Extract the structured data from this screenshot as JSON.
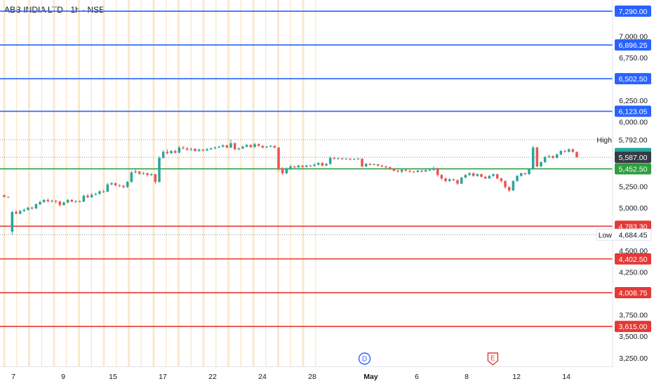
{
  "header": {
    "title": "ABB INDIA LTD · 1h · NSE"
  },
  "colors": {
    "resistance": "#2962ff",
    "support_top": "#2e9e3e",
    "support": "#e53935",
    "up": "#26a69a",
    "down": "#ef5350",
    "current": "#363a45",
    "vgrid": "#fbe3c2"
  },
  "chart_data": {
    "type": "candlestick",
    "ylim": [
      3150,
      7420
    ],
    "y_ticks": [
      {
        "value": 7000,
        "label": "7,000.00"
      },
      {
        "value": 6750,
        "label": "6,750.00"
      },
      {
        "value": 6250,
        "label": "6,250.00"
      },
      {
        "value": 6000,
        "label": "6,000.00"
      },
      {
        "value": 5250,
        "label": "5,250.00"
      },
      {
        "value": 5000,
        "label": "5,000.00"
      },
      {
        "value": 4500,
        "label": "4,500.00"
      },
      {
        "value": 4250,
        "label": "4,250.00"
      },
      {
        "value": 3750,
        "label": "3,750.00"
      },
      {
        "value": 3500,
        "label": "3,500.00"
      },
      {
        "value": 3250,
        "label": "3,250.00"
      }
    ],
    "x_ticks": [
      {
        "label": "7",
        "pos": 0.0
      },
      {
        "label": "9",
        "pos": 2.0
      },
      {
        "label": "15",
        "pos": 4.0
      },
      {
        "label": "17",
        "pos": 6.0
      },
      {
        "label": "22",
        "pos": 8.0
      },
      {
        "label": "24",
        "pos": 10.0
      },
      {
        "label": "28",
        "pos": 12.0
      },
      {
        "label": "May",
        "pos": 14.35
      },
      {
        "label": "6",
        "pos": 16.2
      },
      {
        "label": "8",
        "pos": 18.2
      },
      {
        "label": "12",
        "pos": 20.2
      },
      {
        "label": "14",
        "pos": 22.2
      }
    ],
    "levels": [
      {
        "value": 7290.0,
        "label": "7,290.00",
        "kind": "resistance"
      },
      {
        "value": 6896.25,
        "label": "6,896.25",
        "kind": "resistance"
      },
      {
        "value": 6502.5,
        "label": "6,502.50",
        "kind": "resistance"
      },
      {
        "value": 6123.05,
        "label": "6,123.05",
        "kind": "resistance"
      },
      {
        "value": 5452.5,
        "label": "5,452.50",
        "kind": "support_top"
      },
      {
        "value": 4783.3,
        "label": "4,783.30",
        "kind": "support"
      },
      {
        "value": 4402.5,
        "label": "4,402.50",
        "kind": "support"
      },
      {
        "value": 4008.75,
        "label": "4,008.75",
        "kind": "support"
      },
      {
        "value": 3615.0,
        "label": "3,615.00",
        "kind": "support"
      }
    ],
    "high": {
      "label": "High",
      "value": 5792.0,
      "value_label": "5,792.00"
    },
    "low": {
      "label": "Low",
      "value": 4684.45,
      "value_label": "4,684.45"
    },
    "prev_close": {
      "value": 5630.5,
      "label": "5,630.50"
    },
    "last_price": {
      "value": 5587.0,
      "label": "5,587.00"
    },
    "markers": [
      {
        "label": "D",
        "pos": 14.1,
        "shape": "circle"
      },
      {
        "label": "E",
        "pos": 19.25,
        "shape": "shield"
      }
    ],
    "candles": [
      [
        5146,
        5125,
        5150,
        5120
      ],
      [
        5125,
        5120,
        5130,
        5115
      ],
      [
        4720,
        4950,
        4960,
        4684
      ],
      [
        4950,
        4930,
        4970,
        4920
      ],
      [
        4930,
        4960,
        4975,
        4920
      ],
      [
        4960,
        4975,
        4990,
        4950
      ],
      [
        4975,
        5000,
        5010,
        4965
      ],
      [
        5000,
        4990,
        5015,
        4975
      ],
      [
        4990,
        5040,
        5050,
        4985
      ],
      [
        5040,
        5065,
        5080,
        5030
      ],
      [
        5065,
        5090,
        5100,
        5055
      ],
      [
        5090,
        5075,
        5110,
        5060
      ],
      [
        5075,
        5080,
        5095,
        5060
      ],
      [
        5080,
        5070,
        5090,
        5050
      ],
      [
        5070,
        5030,
        5080,
        5010
      ],
      [
        5030,
        5060,
        5070,
        5020
      ],
      [
        5060,
        5090,
        5100,
        5050
      ],
      [
        5090,
        5070,
        5100,
        5060
      ],
      [
        5070,
        5075,
        5090,
        5055
      ],
      [
        5075,
        5070,
        5085,
        5060
      ],
      [
        5070,
        5140,
        5150,
        5065
      ],
      [
        5140,
        5120,
        5160,
        5110
      ],
      [
        5120,
        5150,
        5170,
        5115
      ],
      [
        5150,
        5160,
        5175,
        5140
      ],
      [
        5160,
        5190,
        5200,
        5150
      ],
      [
        5190,
        5185,
        5210,
        5170
      ],
      [
        5185,
        5270,
        5290,
        5180
      ],
      [
        5270,
        5285,
        5300,
        5260
      ],
      [
        5285,
        5260,
        5295,
        5250
      ],
      [
        5260,
        5255,
        5275,
        5240
      ],
      [
        5255,
        5240,
        5265,
        5225
      ],
      [
        5240,
        5300,
        5310,
        5230
      ],
      [
        5300,
        5410,
        5430,
        5290
      ],
      [
        5410,
        5420,
        5450,
        5400
      ],
      [
        5420,
        5395,
        5430,
        5380
      ],
      [
        5395,
        5400,
        5420,
        5385
      ],
      [
        5400,
        5380,
        5410,
        5360
      ],
      [
        5380,
        5390,
        5400,
        5370
      ],
      [
        5390,
        5300,
        5395,
        5280
      ],
      [
        5300,
        5580,
        5600,
        5290
      ],
      [
        5580,
        5650,
        5670,
        5570
      ],
      [
        5650,
        5635,
        5680,
        5620
      ],
      [
        5635,
        5660,
        5670,
        5625
      ],
      [
        5660,
        5640,
        5675,
        5630
      ],
      [
        5640,
        5700,
        5720,
        5635
      ],
      [
        5700,
        5690,
        5720,
        5680
      ],
      [
        5690,
        5675,
        5705,
        5665
      ],
      [
        5675,
        5685,
        5700,
        5660
      ],
      [
        5685,
        5660,
        5695,
        5650
      ],
      [
        5660,
        5675,
        5690,
        5650
      ],
      [
        5675,
        5665,
        5685,
        5655
      ],
      [
        5665,
        5680,
        5695,
        5660
      ],
      [
        5680,
        5690,
        5700,
        5670
      ],
      [
        5690,
        5700,
        5715,
        5680
      ],
      [
        5700,
        5710,
        5720,
        5695
      ],
      [
        5710,
        5725,
        5740,
        5700
      ],
      [
        5725,
        5700,
        5735,
        5690
      ],
      [
        5700,
        5750,
        5792,
        5695
      ],
      [
        5750,
        5680,
        5760,
        5670
      ],
      [
        5680,
        5690,
        5700,
        5665
      ],
      [
        5690,
        5710,
        5725,
        5680
      ],
      [
        5710,
        5730,
        5745,
        5700
      ],
      [
        5730,
        5705,
        5740,
        5695
      ],
      [
        5705,
        5740,
        5755,
        5700
      ],
      [
        5740,
        5720,
        5750,
        5710
      ],
      [
        5720,
        5700,
        5730,
        5690
      ],
      [
        5700,
        5710,
        5720,
        5695
      ],
      [
        5710,
        5720,
        5730,
        5705
      ],
      [
        5720,
        5700,
        5725,
        5690
      ],
      [
        5700,
        5460,
        5705,
        5420
      ],
      [
        5460,
        5400,
        5470,
        5380
      ],
      [
        5400,
        5450,
        5470,
        5390
      ],
      [
        5450,
        5480,
        5500,
        5440
      ],
      [
        5480,
        5470,
        5490,
        5460
      ],
      [
        5470,
        5490,
        5500,
        5465
      ],
      [
        5490,
        5475,
        5495,
        5460
      ],
      [
        5475,
        5490,
        5500,
        5470
      ],
      [
        5490,
        5485,
        5500,
        5475
      ],
      [
        5485,
        5500,
        5520,
        5480
      ],
      [
        5500,
        5520,
        5530,
        5490
      ],
      [
        5520,
        5490,
        5530,
        5480
      ],
      [
        5490,
        5510,
        5520,
        5485
      ],
      [
        5510,
        5580,
        5600,
        5500
      ],
      [
        5580,
        5570,
        5590,
        5560
      ],
      [
        5570,
        5575,
        5585,
        5560
      ],
      [
        5575,
        5565,
        5580,
        5555
      ],
      [
        5565,
        5570,
        5580,
        5560
      ],
      [
        5570,
        5560,
        5575,
        5550
      ],
      [
        5560,
        5565,
        5575,
        5555
      ],
      [
        5565,
        5570,
        5580,
        5560
      ],
      [
        5570,
        5480,
        5575,
        5470
      ],
      [
        5480,
        5510,
        5520,
        5475
      ],
      [
        5510,
        5500,
        5520,
        5490
      ],
      [
        5500,
        5505,
        5515,
        5495
      ],
      [
        5505,
        5490,
        5510,
        5480
      ],
      [
        5490,
        5480,
        5500,
        5470
      ],
      [
        5480,
        5470,
        5490,
        5460
      ],
      [
        5470,
        5450,
        5480,
        5440
      ],
      [
        5450,
        5430,
        5460,
        5420
      ],
      [
        5430,
        5420,
        5440,
        5410
      ],
      [
        5420,
        5440,
        5450,
        5400
      ],
      [
        5440,
        5430,
        5450,
        5420
      ],
      [
        5430,
        5420,
        5440,
        5410
      ],
      [
        5420,
        5415,
        5430,
        5405
      ],
      [
        5415,
        5430,
        5440,
        5410
      ],
      [
        5430,
        5420,
        5440,
        5410
      ],
      [
        5420,
        5435,
        5445,
        5415
      ],
      [
        5435,
        5440,
        5450,
        5425
      ],
      [
        5440,
        5460,
        5480,
        5430
      ],
      [
        5460,
        5380,
        5465,
        5360
      ],
      [
        5380,
        5340,
        5390,
        5320
      ],
      [
        5340,
        5310,
        5350,
        5295
      ],
      [
        5310,
        5330,
        5345,
        5300
      ],
      [
        5330,
        5320,
        5340,
        5310
      ],
      [
        5320,
        5280,
        5330,
        5260
      ],
      [
        5280,
        5350,
        5360,
        5275
      ],
      [
        5350,
        5380,
        5390,
        5340
      ],
      [
        5380,
        5400,
        5415,
        5370
      ],
      [
        5400,
        5370,
        5410,
        5360
      ],
      [
        5370,
        5390,
        5400,
        5360
      ],
      [
        5390,
        5360,
        5395,
        5350
      ],
      [
        5360,
        5340,
        5370,
        5330
      ],
      [
        5340,
        5370,
        5380,
        5335
      ],
      [
        5370,
        5390,
        5400,
        5360
      ],
      [
        5390,
        5340,
        5395,
        5330
      ],
      [
        5340,
        5310,
        5350,
        5290
      ],
      [
        5310,
        5240,
        5320,
        5220
      ],
      [
        5240,
        5200,
        5250,
        5180
      ],
      [
        5200,
        5310,
        5320,
        5195
      ],
      [
        5310,
        5370,
        5380,
        5300
      ],
      [
        5370,
        5400,
        5410,
        5360
      ],
      [
        5400,
        5390,
        5410,
        5380
      ],
      [
        5390,
        5450,
        5460,
        5380
      ],
      [
        5450,
        5700,
        5720,
        5440
      ],
      [
        5700,
        5480,
        5710,
        5470
      ],
      [
        5480,
        5530,
        5540,
        5470
      ],
      [
        5530,
        5590,
        5600,
        5520
      ],
      [
        5590,
        5600,
        5615,
        5580
      ],
      [
        5600,
        5580,
        5610,
        5570
      ],
      [
        5580,
        5620,
        5630,
        5575
      ],
      [
        5620,
        5660,
        5670,
        5610
      ],
      [
        5660,
        5650,
        5675,
        5640
      ],
      [
        5650,
        5680,
        5690,
        5645
      ],
      [
        5680,
        5650,
        5690,
        5640
      ],
      [
        5650,
        5587,
        5655,
        5580
      ]
    ]
  }
}
